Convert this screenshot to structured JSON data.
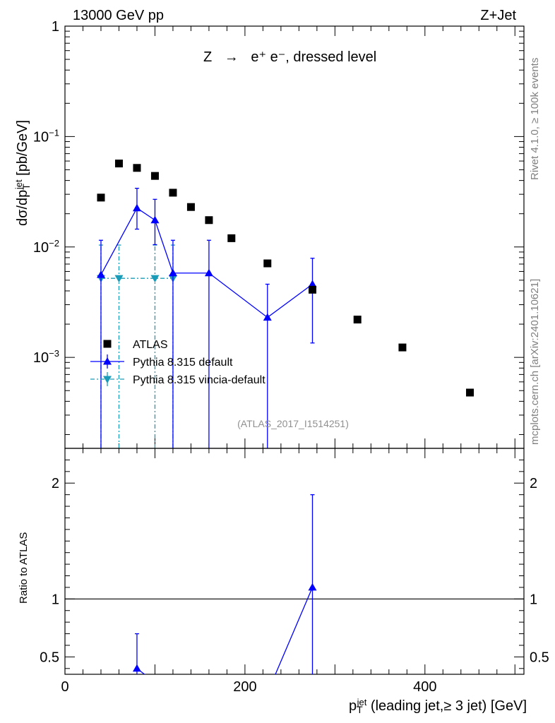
{
  "chart_data": {
    "type": "scatter",
    "header": {
      "left": "13000 GeV pp",
      "right": "Z+Jet"
    },
    "title": {
      "prefix": "Z",
      "arrow": "→",
      "suffix": "e⁺ e⁻, dressed level"
    },
    "side_label_top": "Rivet 4.1.0, ≥ 100k events",
    "side_label_bottom": "mcplots.cern.ch [arXiv:2401.10621]",
    "analysis_tag": "(ATLAS_2017_I1514251)",
    "ylabel": "dσ/dp_T^jet [pb/GeV]",
    "ylabel_parts": {
      "a": "dσ/dp",
      "sub": "T",
      "sup": "jet",
      "b": " [pb/GeV]"
    },
    "ratio_ylabel": "Ratio to ATLAS",
    "xlabel_parts": {
      "a": "p",
      "sub": "T",
      "sup": "jet",
      "b": " (leading jet,≥ 3 jet) [GeV]"
    },
    "xlim": [
      0,
      510
    ],
    "ylim": [
      0.00015,
      1
    ],
    "ratio_ylim": [
      0.35,
      2.3
    ],
    "x_ticks": [
      0,
      200,
      400
    ],
    "x_tick_labels": [
      "0",
      "200",
      "400"
    ],
    "y_ticks": [
      {
        "value": 1,
        "label": "1"
      },
      {
        "value": 0.1,
        "base": "10",
        "exp": "−1"
      },
      {
        "value": 0.01,
        "base": "10",
        "exp": "−2"
      },
      {
        "value": 0.001,
        "base": "10",
        "exp": "−3"
      }
    ],
    "ratio_ticks": [
      {
        "value": 0.5,
        "label": "0.5"
      },
      {
        "value": 1,
        "label": "1"
      },
      {
        "value": 2,
        "label": "2"
      }
    ],
    "legend": [
      {
        "label": "ATLAS",
        "color": "#000000",
        "marker": "square"
      },
      {
        "label": "Pythia 8.315 default",
        "color": "#0000ff",
        "marker": "triangle-up"
      },
      {
        "label": "Pythia 8.315 vincia-default",
        "color": "#1a9cb8",
        "marker": "triangle-down"
      }
    ],
    "series": [
      {
        "name": "ATLAS",
        "color": "#000000",
        "x": [
          40,
          60,
          80,
          100,
          120,
          140,
          160,
          185,
          225,
          275,
          325,
          375,
          450
        ],
        "y": [
          0.028,
          0.057,
          0.052,
          0.044,
          0.031,
          0.023,
          0.0175,
          0.012,
          0.0071,
          0.0041,
          0.0022,
          0.00123,
          0.00048
        ]
      },
      {
        "name": "Pythia 8.315 default",
        "color": "#0000ff",
        "x": [
          40,
          80,
          100,
          120,
          160,
          225,
          275
        ],
        "y": [
          0.0056,
          0.0225,
          0.0175,
          0.0058,
          0.0058,
          0.0023,
          0.0046
        ],
        "ylo": [
          1e-05,
          0.0145,
          0.0105,
          1e-05,
          1e-05,
          1e-05,
          0.00135
        ],
        "yhi": [
          0.0115,
          0.034,
          0.027,
          0.0115,
          0.0115,
          0.0046,
          0.0079
        ]
      },
      {
        "name": "Pythia 8.315 vincia-default",
        "color": "#1a9cb8",
        "x": [
          40,
          60,
          100,
          120
        ],
        "y": [
          0.0052,
          0.0052,
          0.0052,
          0.0052
        ],
        "ylo": [
          1e-05,
          1e-05,
          1e-05,
          1e-05
        ],
        "yhi": [
          0.0104,
          0.0104,
          0.0104,
          0.0104
        ]
      }
    ],
    "ratio_series": [
      {
        "name": "Pythia 8.315 default",
        "color": "#0000ff",
        "x": [
          80,
          275
        ],
        "y": [
          0.4,
          1.1
        ],
        "ylo": [
          0.1,
          0.3
        ],
        "yhi": [
          0.7,
          1.9
        ],
        "line_x": [
          80,
          100,
          230,
          275
        ],
        "line_y": [
          0.4,
          0.28,
          0.28,
          1.1
        ]
      }
    ]
  }
}
